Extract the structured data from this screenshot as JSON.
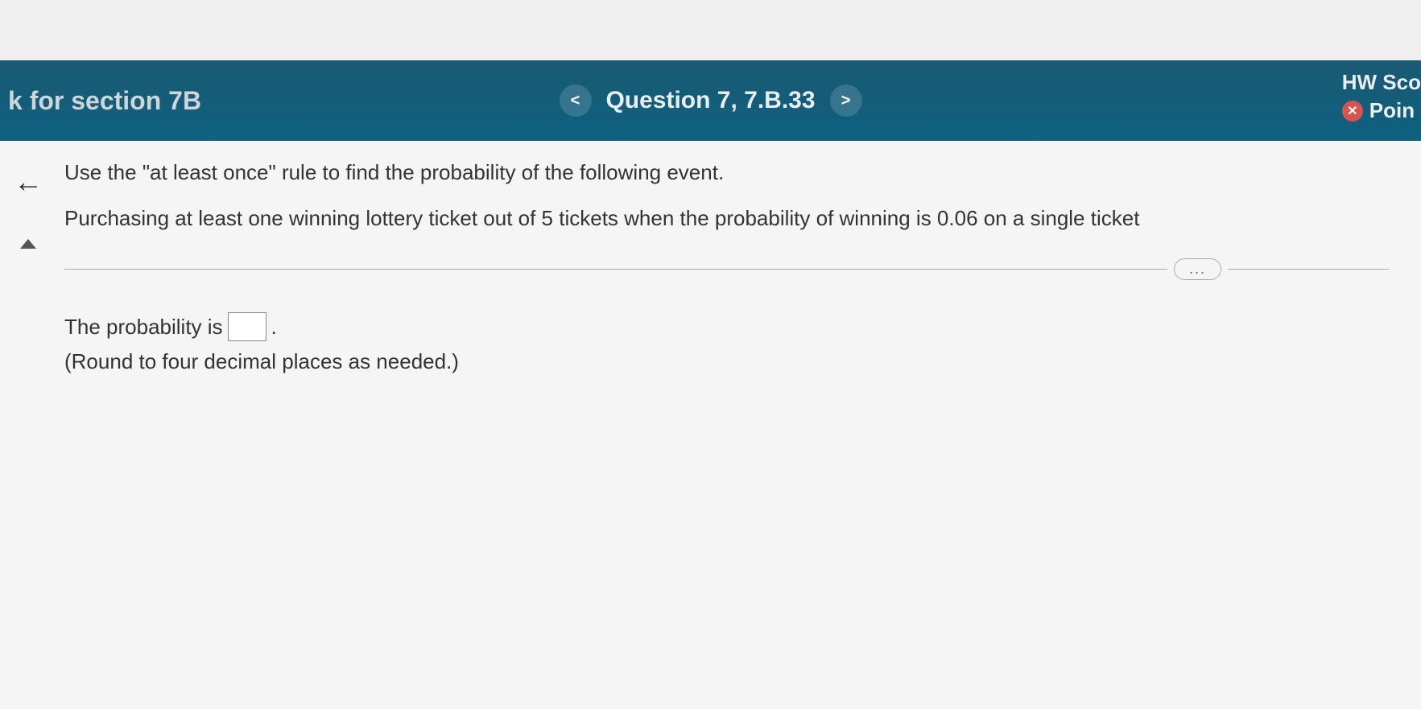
{
  "header": {
    "section_title": "k for section 7B",
    "question_label": "Question 7, 7.B.33",
    "hw_score_label": "HW Sco",
    "points_label": "Poin"
  },
  "question": {
    "instruction": "Use the \"at least once\" rule to find the probability of the following event.",
    "problem": "Purchasing at least one winning lottery ticket out of 5 tickets when the probability of winning is 0.06 on a single ticket"
  },
  "answer": {
    "prefix": "The probability is",
    "suffix": ".",
    "value": "",
    "round_note": "(Round to four decimal places as needed.)"
  },
  "ellipsis": "..."
}
